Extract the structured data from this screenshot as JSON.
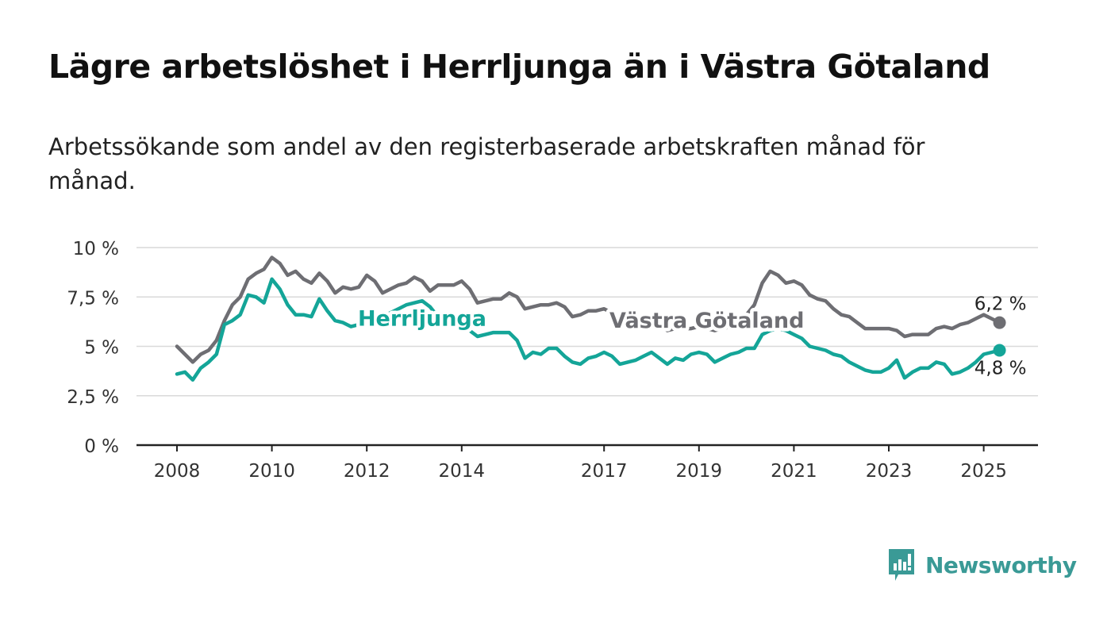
{
  "title": "Lägre arbetslöshet i Herrljunga än i Västra Götaland",
  "subtitle": "Arbetssökande som andel av den registerbaserade arbetskraften månad för månad.",
  "brand": {
    "name": "Newsworthy",
    "color": "#3a9a96",
    "icon": "newsworthy-logo-icon"
  },
  "chart_data": {
    "type": "line",
    "title": "Lägre arbetslöshet i Herrljunga än i Västra Götaland",
    "subtitle": "Arbetssökande som andel av den registerbaserade arbetskraften månad för månad.",
    "xlabel": "",
    "ylabel": "",
    "x_range": [
      "2008-01",
      "2025-05"
    ],
    "ylim": [
      0,
      10
    ],
    "y_ticks": [
      0,
      2.5,
      5,
      7.5,
      10
    ],
    "y_tick_labels": [
      "0 %",
      "2,5 %",
      "5 %",
      "7,5 %",
      "10 %"
    ],
    "x_ticks": [
      "2008",
      "2010",
      "2012",
      "2014",
      "2017",
      "2019",
      "2021",
      "2023",
      "2025"
    ],
    "grid": true,
    "legend": "inline labels",
    "series": [
      {
        "name": "Västra Götaland",
        "color": "#6e6e73",
        "end_label": "6,2 %",
        "points": [
          [
            "2008-01",
            5.0
          ],
          [
            "2008-03",
            4.6
          ],
          [
            "2008-05",
            4.2
          ],
          [
            "2008-07",
            4.6
          ],
          [
            "2008-09",
            4.8
          ],
          [
            "2008-11",
            5.3
          ],
          [
            "2009-01",
            6.3
          ],
          [
            "2009-03",
            7.1
          ],
          [
            "2009-05",
            7.5
          ],
          [
            "2009-07",
            8.4
          ],
          [
            "2009-09",
            8.7
          ],
          [
            "2009-11",
            8.9
          ],
          [
            "2010-01",
            9.5
          ],
          [
            "2010-03",
            9.2
          ],
          [
            "2010-05",
            8.6
          ],
          [
            "2010-07",
            8.8
          ],
          [
            "2010-09",
            8.4
          ],
          [
            "2010-11",
            8.2
          ],
          [
            "2011-01",
            8.7
          ],
          [
            "2011-03",
            8.3
          ],
          [
            "2011-05",
            7.7
          ],
          [
            "2011-07",
            8.0
          ],
          [
            "2011-09",
            7.9
          ],
          [
            "2011-11",
            8.0
          ],
          [
            "2012-01",
            8.6
          ],
          [
            "2012-03",
            8.3
          ],
          [
            "2012-05",
            7.7
          ],
          [
            "2012-07",
            7.9
          ],
          [
            "2012-09",
            8.1
          ],
          [
            "2012-11",
            8.2
          ],
          [
            "2013-01",
            8.5
          ],
          [
            "2013-03",
            8.3
          ],
          [
            "2013-05",
            7.8
          ],
          [
            "2013-07",
            8.1
          ],
          [
            "2013-09",
            8.1
          ],
          [
            "2013-11",
            8.1
          ],
          [
            "2014-01",
            8.3
          ],
          [
            "2014-03",
            7.9
          ],
          [
            "2014-05",
            7.2
          ],
          [
            "2014-07",
            7.3
          ],
          [
            "2014-09",
            7.4
          ],
          [
            "2014-11",
            7.4
          ],
          [
            "2015-01",
            7.7
          ],
          [
            "2015-03",
            7.5
          ],
          [
            "2015-05",
            6.9
          ],
          [
            "2015-07",
            7.0
          ],
          [
            "2015-09",
            7.1
          ],
          [
            "2015-11",
            7.1
          ],
          [
            "2016-01",
            7.2
          ],
          [
            "2016-03",
            7.0
          ],
          [
            "2016-05",
            6.5
          ],
          [
            "2016-07",
            6.6
          ],
          [
            "2016-09",
            6.8
          ],
          [
            "2016-11",
            6.8
          ],
          [
            "2017-01",
            6.9
          ],
          [
            "2017-03",
            6.7
          ],
          [
            "2017-05",
            6.2
          ],
          [
            "2017-07",
            6.1
          ],
          [
            "2017-09",
            6.1
          ],
          [
            "2017-11",
            6.1
          ],
          [
            "2018-01",
            6.2
          ],
          [
            "2018-03",
            6.1
          ],
          [
            "2018-05",
            5.8
          ],
          [
            "2018-07",
            5.9
          ],
          [
            "2018-09",
            5.9
          ],
          [
            "2018-11",
            5.9
          ],
          [
            "2019-01",
            6.0
          ],
          [
            "2019-03",
            5.9
          ],
          [
            "2019-05",
            5.8
          ],
          [
            "2019-07",
            5.9
          ],
          [
            "2019-09",
            6.0
          ],
          [
            "2019-11",
            6.3
          ],
          [
            "2020-01",
            6.6
          ],
          [
            "2020-03",
            7.1
          ],
          [
            "2020-05",
            8.2
          ],
          [
            "2020-07",
            8.8
          ],
          [
            "2020-09",
            8.6
          ],
          [
            "2020-11",
            8.2
          ],
          [
            "2021-01",
            8.3
          ],
          [
            "2021-03",
            8.1
          ],
          [
            "2021-05",
            7.6
          ],
          [
            "2021-07",
            7.4
          ],
          [
            "2021-09",
            7.3
          ],
          [
            "2021-11",
            6.9
          ],
          [
            "2022-01",
            6.6
          ],
          [
            "2022-03",
            6.5
          ],
          [
            "2022-05",
            6.2
          ],
          [
            "2022-07",
            5.9
          ],
          [
            "2022-09",
            5.9
          ],
          [
            "2022-11",
            5.9
          ],
          [
            "2023-01",
            5.9
          ],
          [
            "2023-03",
            5.8
          ],
          [
            "2023-05",
            5.5
          ],
          [
            "2023-07",
            5.6
          ],
          [
            "2023-09",
            5.6
          ],
          [
            "2023-11",
            5.6
          ],
          [
            "2024-01",
            5.9
          ],
          [
            "2024-03",
            6.0
          ],
          [
            "2024-05",
            5.9
          ],
          [
            "2024-07",
            6.1
          ],
          [
            "2024-09",
            6.2
          ],
          [
            "2024-11",
            6.4
          ],
          [
            "2025-01",
            6.6
          ],
          [
            "2025-03",
            6.4
          ],
          [
            "2025-05",
            6.2
          ]
        ]
      },
      {
        "name": "Herrljunga",
        "color": "#14a598",
        "end_label": "4,8 %",
        "points": [
          [
            "2008-01",
            3.6
          ],
          [
            "2008-03",
            3.7
          ],
          [
            "2008-05",
            3.3
          ],
          [
            "2008-07",
            3.9
          ],
          [
            "2008-09",
            4.2
          ],
          [
            "2008-11",
            4.6
          ],
          [
            "2009-01",
            6.1
          ],
          [
            "2009-03",
            6.3
          ],
          [
            "2009-05",
            6.6
          ],
          [
            "2009-07",
            7.6
          ],
          [
            "2009-09",
            7.5
          ],
          [
            "2009-11",
            7.2
          ],
          [
            "2010-01",
            8.4
          ],
          [
            "2010-03",
            7.9
          ],
          [
            "2010-05",
            7.1
          ],
          [
            "2010-07",
            6.6
          ],
          [
            "2010-09",
            6.6
          ],
          [
            "2010-11",
            6.5
          ],
          [
            "2011-01",
            7.4
          ],
          [
            "2011-03",
            6.8
          ],
          [
            "2011-05",
            6.3
          ],
          [
            "2011-07",
            6.2
          ],
          [
            "2011-09",
            6.0
          ],
          [
            "2011-11",
            6.1
          ],
          [
            "2012-01",
            6.8
          ],
          [
            "2012-03",
            6.4
          ],
          [
            "2012-05",
            6.5
          ],
          [
            "2012-07",
            6.7
          ],
          [
            "2012-09",
            6.9
          ],
          [
            "2012-11",
            7.1
          ],
          [
            "2013-01",
            7.2
          ],
          [
            "2013-03",
            7.3
          ],
          [
            "2013-05",
            7.0
          ],
          [
            "2013-07",
            6.5
          ],
          [
            "2013-09",
            6.3
          ],
          [
            "2013-11",
            6.1
          ],
          [
            "2014-01",
            6.2
          ],
          [
            "2014-03",
            5.8
          ],
          [
            "2014-05",
            5.5
          ],
          [
            "2014-07",
            5.6
          ],
          [
            "2014-09",
            5.7
          ],
          [
            "2014-11",
            5.7
          ],
          [
            "2015-01",
            5.7
          ],
          [
            "2015-03",
            5.3
          ],
          [
            "2015-05",
            4.4
          ],
          [
            "2015-07",
            4.7
          ],
          [
            "2015-09",
            4.6
          ],
          [
            "2015-11",
            4.9
          ],
          [
            "2016-01",
            4.9
          ],
          [
            "2016-03",
            4.5
          ],
          [
            "2016-05",
            4.2
          ],
          [
            "2016-07",
            4.1
          ],
          [
            "2016-09",
            4.4
          ],
          [
            "2016-11",
            4.5
          ],
          [
            "2017-01",
            4.7
          ],
          [
            "2017-03",
            4.5
          ],
          [
            "2017-05",
            4.1
          ],
          [
            "2017-07",
            4.2
          ],
          [
            "2017-09",
            4.3
          ],
          [
            "2017-11",
            4.5
          ],
          [
            "2018-01",
            4.7
          ],
          [
            "2018-03",
            4.4
          ],
          [
            "2018-05",
            4.1
          ],
          [
            "2018-07",
            4.4
          ],
          [
            "2018-09",
            4.3
          ],
          [
            "2018-11",
            4.6
          ],
          [
            "2019-01",
            4.7
          ],
          [
            "2019-03",
            4.6
          ],
          [
            "2019-05",
            4.2
          ],
          [
            "2019-07",
            4.4
          ],
          [
            "2019-09",
            4.6
          ],
          [
            "2019-11",
            4.7
          ],
          [
            "2020-01",
            4.9
          ],
          [
            "2020-03",
            4.9
          ],
          [
            "2020-05",
            5.6
          ],
          [
            "2020-07",
            5.8
          ],
          [
            "2020-09",
            5.9
          ],
          [
            "2020-11",
            5.8
          ],
          [
            "2021-01",
            5.6
          ],
          [
            "2021-03",
            5.4
          ],
          [
            "2021-05",
            5.0
          ],
          [
            "2021-07",
            4.9
          ],
          [
            "2021-09",
            4.8
          ],
          [
            "2021-11",
            4.6
          ],
          [
            "2022-01",
            4.5
          ],
          [
            "2022-03",
            4.2
          ],
          [
            "2022-05",
            4.0
          ],
          [
            "2022-07",
            3.8
          ],
          [
            "2022-09",
            3.7
          ],
          [
            "2022-11",
            3.7
          ],
          [
            "2023-01",
            3.9
          ],
          [
            "2023-03",
            4.3
          ],
          [
            "2023-05",
            3.4
          ],
          [
            "2023-07",
            3.7
          ],
          [
            "2023-09",
            3.9
          ],
          [
            "2023-11",
            3.9
          ],
          [
            "2024-01",
            4.2
          ],
          [
            "2024-03",
            4.1
          ],
          [
            "2024-05",
            3.6
          ],
          [
            "2024-07",
            3.7
          ],
          [
            "2024-09",
            3.9
          ],
          [
            "2024-11",
            4.2
          ],
          [
            "2025-01",
            4.6
          ],
          [
            "2025-03",
            4.7
          ],
          [
            "2025-05",
            4.8
          ]
        ]
      }
    ],
    "inline_labels": [
      {
        "series": "Herrljunga",
        "text": "Herrljunga",
        "at": [
          "2013-03",
          6.4
        ]
      },
      {
        "series": "Västra Götaland",
        "text": "Västra Götaland",
        "at": [
          "2019-03",
          6.3
        ]
      }
    ]
  }
}
